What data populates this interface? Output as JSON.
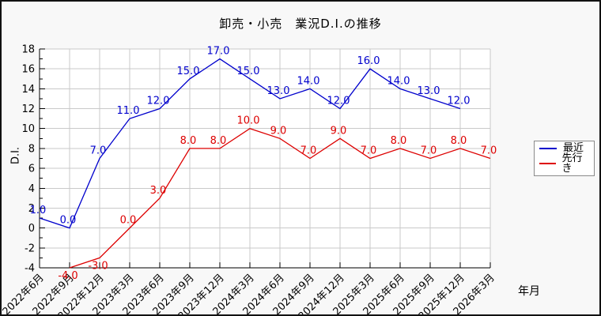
{
  "window": {
    "background": "#f8f8f8",
    "border_color": "#111111"
  },
  "chart_data": {
    "type": "line",
    "title": "卸売・小売　業況D.I.の推移",
    "xlabel": "年月",
    "ylabel": "D.I.",
    "ylim": [
      -4,
      18
    ],
    "ytick_step": 2,
    "ytick_minor_step": 1,
    "grid": true,
    "grid_color": "#c9c9c9",
    "plot_bg": "#ffffff",
    "axis_color": "#000000",
    "legend_position": "right-outside",
    "categories": [
      "2022年6月",
      "2022年9月",
      "2022年12月",
      "2023年3月",
      "2023年6月",
      "2023年9月",
      "2023年12月",
      "2024年3月",
      "2024年6月",
      "2024年9月",
      "2024年12月",
      "2025年3月",
      "2025年6月",
      "2025年9月",
      "2025年12月",
      "2026年3月"
    ],
    "series": [
      {
        "name": "最近",
        "id": "recent",
        "color": "#0000cc",
        "start_index": 0,
        "values": [
          1.0,
          0.0,
          7.0,
          11.0,
          12.0,
          15.0,
          17.0,
          15.0,
          13.0,
          14.0,
          12.0,
          16.0,
          14.0,
          13.0,
          12.0
        ],
        "labels": [
          "1.0",
          "0.0",
          "7.0",
          "11.0",
          "12.0",
          "15.0",
          "17.0",
          "15.0",
          "13.0",
          "14.0",
          "12.0",
          "16.0",
          "14.0",
          "13.0",
          "12.0"
        ]
      },
      {
        "name": "先行き",
        "id": "outlook",
        "color": "#dd0000",
        "start_index": 1,
        "values": [
          -4.0,
          -3.0,
          0.0,
          3.0,
          8.0,
          8.0,
          10.0,
          9.0,
          7.0,
          9.0,
          7.0,
          8.0,
          7.0,
          8.0,
          7.0
        ],
        "labels": [
          "-4.0",
          "-3.0",
          "0.0",
          "3.0",
          "8.0",
          "8.0",
          "10.0",
          "9.0",
          "7.0",
          "9.0",
          "7.0",
          "8.0",
          "7.0",
          "8.0",
          "7.0"
        ]
      }
    ]
  }
}
